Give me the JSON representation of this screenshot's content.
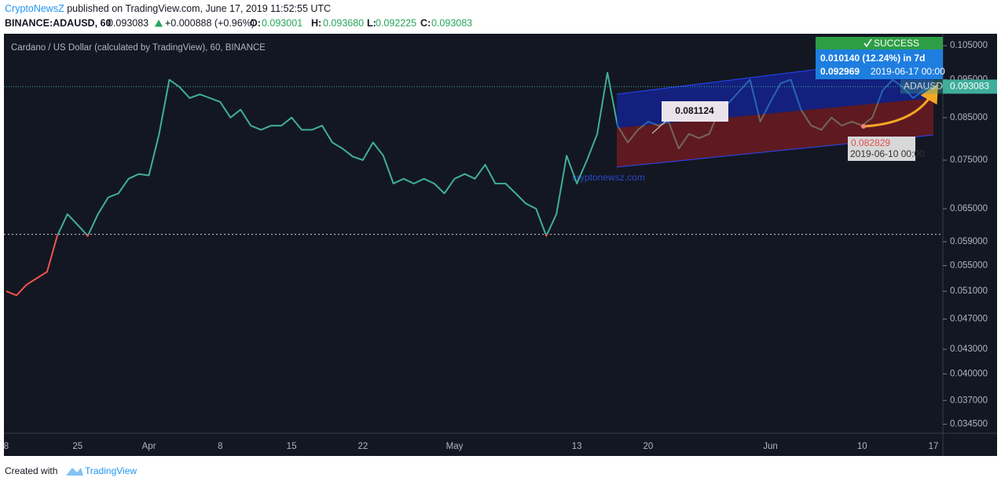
{
  "header": {
    "author": "CryptoNewsZ",
    "published": "published on TradingView.com, June 17, 2019 11:52:55 UTC",
    "symbol": "BINANCE:ADAUSD, 60",
    "last": "0.093083",
    "change": "+0.000888 (+0.96%)",
    "open_label": "O:",
    "open": "0.093001",
    "high_label": "H:",
    "high": "0.093680",
    "low_label": "L:",
    "low": "0.092225",
    "close_label": "C:",
    "close": "0.093083"
  },
  "chart_data": {
    "type": "line",
    "title": "Cardano / US Dollar (calculated by TradingView), 60, BINANCE",
    "price_label": "0.093083",
    "categories": [
      "8",
      null,
      null,
      null,
      null,
      null,
      null,
      "25",
      null,
      null,
      null,
      null,
      null,
      null,
      "Apr",
      null,
      null,
      null,
      null,
      null,
      null,
      "8",
      null,
      null,
      null,
      null,
      null,
      null,
      "15",
      null,
      null,
      null,
      null,
      null,
      null,
      "22",
      null,
      null,
      null,
      null,
      null,
      null,
      null,
      null,
      "May",
      null,
      null,
      null,
      null,
      null,
      null,
      null,
      null,
      null,
      null,
      null,
      "13",
      null,
      null,
      null,
      null,
      null,
      null,
      "20",
      null,
      null,
      null,
      null,
      null,
      null,
      null,
      null,
      null,
      null,
      null,
      "Jun",
      null,
      null,
      null,
      null,
      null,
      null,
      null,
      null,
      "10",
      null,
      null,
      null,
      null,
      null,
      null,
      "17"
    ],
    "series": [
      {
        "name": "ADAUSD",
        "color": "#3fae9b",
        "color_below": "#ef5350",
        "values": [
          0.051,
          0.0504,
          0.052,
          0.053,
          0.054,
          0.06,
          0.064,
          0.062,
          0.06,
          0.064,
          0.0672,
          0.068,
          0.071,
          0.072,
          0.0717,
          0.081,
          0.095,
          0.093,
          0.09,
          0.091,
          0.09,
          0.089,
          0.085,
          0.087,
          0.083,
          0.082,
          0.083,
          0.083,
          0.085,
          0.082,
          0.082,
          0.083,
          0.079,
          0.0776,
          0.0758,
          0.075,
          0.079,
          0.076,
          0.07,
          0.071,
          0.07,
          0.071,
          0.07,
          0.068,
          0.071,
          0.072,
          0.071,
          0.074,
          0.07,
          0.07,
          0.068,
          0.066,
          0.065,
          0.06,
          0.064,
          0.076,
          0.07,
          0.075,
          0.081,
          0.097,
          0.083,
          0.079,
          0.082,
          0.084,
          0.083,
          0.084,
          0.0776,
          0.081,
          0.08,
          0.081,
          0.087,
          0.089,
          0.092,
          0.095,
          0.084,
          0.089,
          0.094,
          0.095,
          0.087,
          0.083,
          0.082,
          0.085,
          0.083,
          0.084,
          0.083,
          0.085,
          0.092,
          0.095,
          0.093,
          0.09,
          0.092,
          0.093083
        ]
      }
    ],
    "baseline": 0.0603,
    "log_scale": true,
    "ylim": [
      0.0336,
      0.1085
    ],
    "yticks": [
      {
        "value": 0.105,
        "label": "0.105000"
      },
      {
        "value": 0.095,
        "label": "0.095000"
      },
      {
        "value": 0.085,
        "label": "0.085000"
      },
      {
        "value": 0.075,
        "label": "0.075000"
      },
      {
        "value": 0.065,
        "label": "0.065000"
      },
      {
        "value": 0.059,
        "label": "0.059000"
      },
      {
        "value": 0.055,
        "label": "0.055000"
      },
      {
        "value": 0.051,
        "label": "0.051000"
      },
      {
        "value": 0.047,
        "label": "0.047000"
      },
      {
        "value": 0.043,
        "label": "0.043000"
      },
      {
        "value": 0.04,
        "label": "0.040000"
      },
      {
        "value": 0.037,
        "label": "0.037000"
      },
      {
        "value": 0.0345,
        "label": "0.034500"
      }
    ],
    "annotations": {
      "watermark": "cryptonewsz.com",
      "callout": "0.081124",
      "start_price": "0.082829",
      "start_date": "2019-06-10 00:00",
      "status": "SUCCESS",
      "change": "0.010140 (12.24%) in 7d",
      "end_price": "0.092969",
      "end_date": "2019-06-17 00:00"
    }
  },
  "footer": {
    "created": "Created with",
    "brand": "TradingView"
  }
}
